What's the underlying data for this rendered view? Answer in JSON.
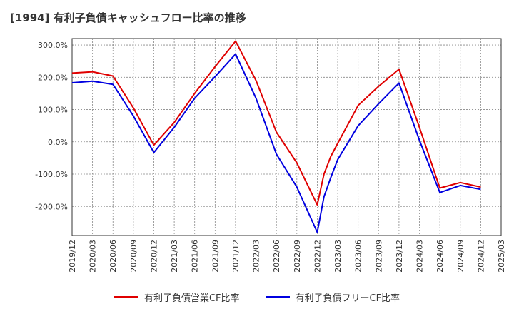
{
  "title": "[1994]  有利子負債キャッシュフロー比率の推移",
  "chart_data": {
    "type": "line",
    "title": "[1994]  有利子負債キャッシュフロー比率の推移",
    "xlabel": "",
    "ylabel": "",
    "x_ticks": [
      "2019/12",
      "2020/03",
      "2020/06",
      "2020/09",
      "2020/12",
      "2021/03",
      "2021/06",
      "2021/09",
      "2021/12",
      "2022/03",
      "2022/06",
      "2022/09",
      "2022/12",
      "2023/03",
      "2023/06",
      "2023/09",
      "2023/12",
      "2024/03",
      "2024/06",
      "2024/09",
      "2024/12",
      "2025/03"
    ],
    "y_ticks": [
      300,
      200,
      100,
      0,
      -100,
      -200
    ],
    "y_tick_labels": [
      "300.0%",
      "200.0%",
      "100.0%",
      "0.0%",
      "-100.0%",
      "-200.0%"
    ],
    "ylim": [
      -290,
      320
    ],
    "grid": true,
    "legend_position": "bottom",
    "series": [
      {
        "name": "有利子負債営業CF比率",
        "color": "#e00000",
        "points": [
          [
            "2019/12",
            213
          ],
          [
            "2020/03",
            217
          ],
          [
            "2020/06",
            204
          ],
          [
            "2020/09",
            105
          ],
          [
            "2020/12",
            -10
          ],
          [
            "2021/03",
            60
          ],
          [
            "2021/06",
            150
          ],
          [
            "2021/09",
            233
          ],
          [
            "2021/12",
            312
          ],
          [
            "2022/03",
            190
          ],
          [
            "2022/06",
            30
          ],
          [
            "2022/09",
            -65
          ],
          [
            "2022/12",
            -195
          ],
          [
            "2022/12/31",
            -100
          ],
          [
            "2023/01/31",
            -45
          ],
          [
            "2023/03",
            -5
          ],
          [
            "2023/06",
            113
          ],
          [
            "2023/09",
            172
          ],
          [
            "2023/12",
            225
          ],
          [
            "2024/03",
            45
          ],
          [
            "2024/06",
            -143
          ],
          [
            "2024/09",
            -126
          ],
          [
            "2024/12",
            -140
          ]
        ]
      },
      {
        "name": "有利子負債フリーCF比率",
        "color": "#0000e0",
        "points": [
          [
            "2019/12",
            183
          ],
          [
            "2020/03",
            188
          ],
          [
            "2020/06",
            178
          ],
          [
            "2020/09",
            80
          ],
          [
            "2020/12",
            -33
          ],
          [
            "2021/03",
            45
          ],
          [
            "2021/06",
            135
          ],
          [
            "2021/09",
            202
          ],
          [
            "2021/12",
            272
          ],
          [
            "2022/03",
            135
          ],
          [
            "2022/06",
            -38
          ],
          [
            "2022/09",
            -140
          ],
          [
            "2022/12",
            -280
          ],
          [
            "2022/12/31",
            -170
          ],
          [
            "2023/01/31",
            -110
          ],
          [
            "2023/03",
            -55
          ],
          [
            "2023/06",
            50
          ],
          [
            "2023/09",
            118
          ],
          [
            "2023/12",
            182
          ],
          [
            "2024/03",
            5
          ],
          [
            "2024/06",
            -157
          ],
          [
            "2024/09",
            -135
          ],
          [
            "2024/12",
            -147
          ]
        ]
      }
    ]
  }
}
